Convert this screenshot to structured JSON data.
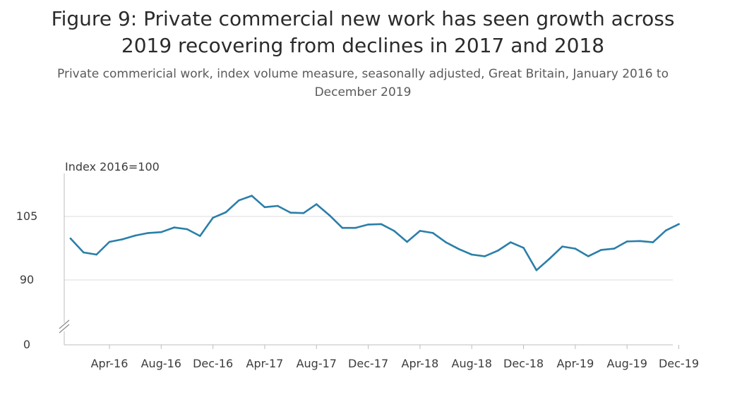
{
  "title": "Figure 9: Private commercial new work has seen growth across 2019 recovering from declines in 2017 and 2018",
  "subtitle": "Private commericial work, index volume measure, seasonally adjusted, Great Britain, January 2016 to December 2019",
  "colors": {
    "series": "#2a7fa8",
    "gridline": "#dcdcdc",
    "axis": "#bdbdbd",
    "text": "#3c3c3c"
  },
  "chart_data": {
    "type": "line",
    "ylabel": "Index 2016=100",
    "ylim": [
      0,
      115
    ],
    "axis_break": true,
    "y_ticks": [
      0,
      90,
      105
    ],
    "y_tick_labels": [
      "0",
      "90",
      "105"
    ],
    "grid": "horizontal",
    "x_tick_labels": [
      "Apr-16",
      "Aug-16",
      "Dec-16",
      "Apr-17",
      "Aug-17",
      "Dec-17",
      "Apr-18",
      "Aug-18",
      "Dec-18",
      "Apr-19",
      "Aug-19",
      "Dec-19"
    ],
    "x_tick_months": [
      "2016-04",
      "2016-08",
      "2016-12",
      "2017-04",
      "2017-08",
      "2017-12",
      "2018-04",
      "2018-08",
      "2018-12",
      "2019-04",
      "2019-08",
      "2019-12"
    ],
    "x": [
      "2016-01",
      "2016-02",
      "2016-03",
      "2016-04",
      "2016-05",
      "2016-06",
      "2016-07",
      "2016-08",
      "2016-09",
      "2016-10",
      "2016-11",
      "2016-12",
      "2017-01",
      "2017-02",
      "2017-03",
      "2017-04",
      "2017-05",
      "2017-06",
      "2017-07",
      "2017-08",
      "2017-09",
      "2017-10",
      "2017-11",
      "2017-12",
      "2018-01",
      "2018-02",
      "2018-03",
      "2018-04",
      "2018-05",
      "2018-06",
      "2018-07",
      "2018-08",
      "2018-09",
      "2018-10",
      "2018-11",
      "2018-12",
      "2019-01",
      "2019-02",
      "2019-03",
      "2019-04",
      "2019-05",
      "2019-06",
      "2019-07",
      "2019-08",
      "2019-09",
      "2019-10",
      "2019-11",
      "2019-12"
    ],
    "series": [
      {
        "values": [
          99.8,
          96.5,
          96.0,
          99.0,
          99.6,
          100.5,
          101.1,
          101.3,
          102.4,
          102.0,
          100.4,
          104.7,
          106.0,
          108.8,
          109.9,
          107.2,
          107.5,
          105.9,
          105.8,
          107.9,
          105.3,
          102.3,
          102.3,
          103.1,
          103.2,
          101.6,
          99.0,
          101.6,
          101.1,
          98.9,
          97.3,
          96.0,
          95.6,
          96.9,
          98.9,
          97.6,
          92.3,
          95.0,
          97.9,
          97.4,
          95.6,
          97.1,
          97.4,
          99.1,
          99.2,
          98.9,
          101.7,
          103.2
        ]
      }
    ]
  }
}
